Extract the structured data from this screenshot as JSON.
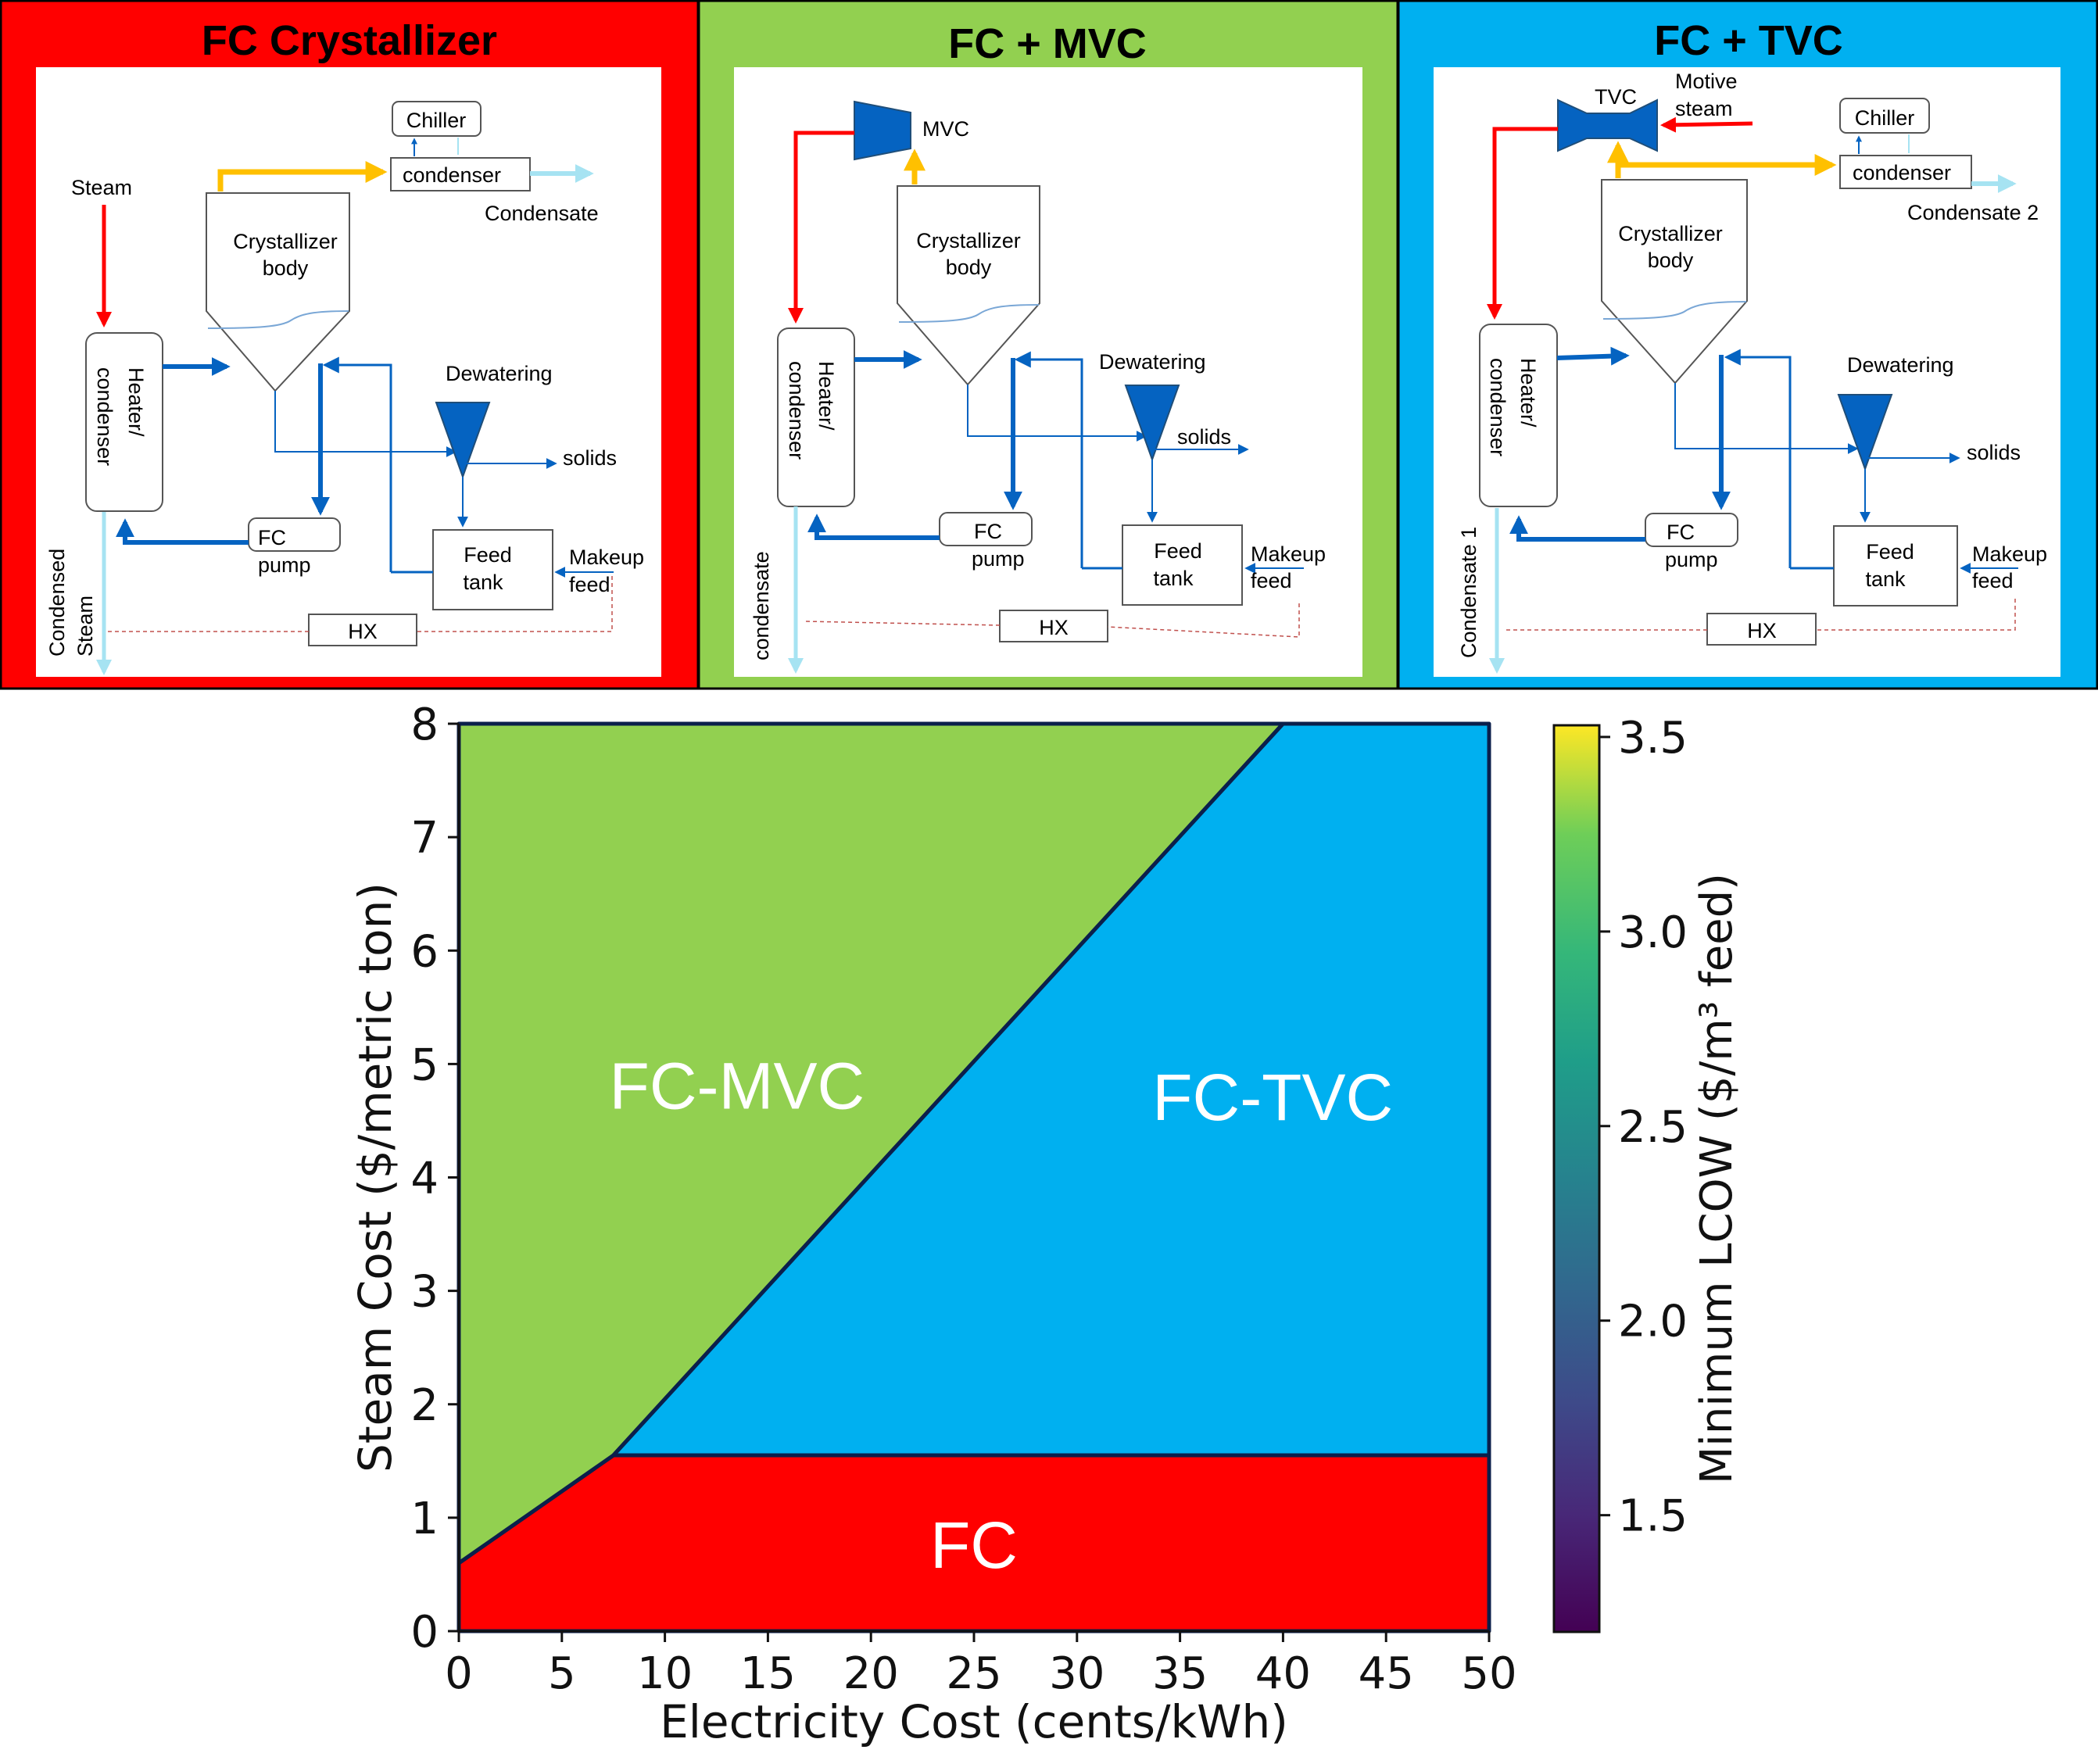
{
  "panels": [
    {
      "title": "FC Crystallizer",
      "bg": "#ff0000",
      "labels": {
        "steam": "Steam",
        "chiller": "Chiller",
        "condenser": "condenser",
        "condensate": "Condensate",
        "body_l1": "Crystallizer",
        "body_l2": "body",
        "hc_l1": "Heater/",
        "hc_l2": "condenser",
        "dewatering": "Dewatering",
        "solids": "solids",
        "pump_l1": "FC",
        "pump_l2": "pump",
        "tank_l1": "Feed",
        "tank_l2": "tank",
        "makeup_l1": "Makeup",
        "makeup_l2": "feed",
        "hx": "HX",
        "out_l1": "Condensed",
        "out_l2": "Steam"
      }
    },
    {
      "title": "FC + MVC",
      "bg": "#92d050",
      "labels": {
        "mvc": "MVC",
        "body_l1": "Crystallizer",
        "body_l2": "body",
        "hc_l1": "Heater/",
        "hc_l2": "condenser",
        "dewatering": "Dewatering",
        "solids": "solids",
        "pump_l1": "FC",
        "pump_l2": "pump",
        "tank_l1": "Feed",
        "tank_l2": "tank",
        "makeup_l1": "Makeup",
        "makeup_l2": "feed",
        "hx": "HX",
        "out_l1": "condensate"
      }
    },
    {
      "title": "FC + TVC",
      "bg": "#00b0f0",
      "labels": {
        "tvc": "TVC",
        "motive_l1": "Motive",
        "motive_l2": "steam",
        "chiller": "Chiller",
        "condenser": "condenser",
        "condensate": "Condensate 2",
        "body_l1": "Crystallizer",
        "body_l2": "body",
        "hc_l1": "Heater/",
        "hc_l2": "condenser",
        "dewatering": "Dewatering",
        "solids": "solids",
        "pump_l1": "FC",
        "pump_l2": "pump",
        "tank_l1": "Feed",
        "tank_l2": "tank",
        "makeup_l1": "Makeup",
        "makeup_l2": "feed",
        "hx": "HX",
        "out_l1": "Condensate 1"
      }
    }
  ],
  "colors": {
    "steam_red": "#ff0000",
    "vapor_yellow": "#ffc000",
    "process_blue": "#0563c1",
    "condensate_lightblue": "#a6e3f2",
    "fc_region": "#ff0000",
    "mvc_region": "#92d050",
    "tvc_region": "#00b0f0",
    "boundary": "#0b1f4b"
  },
  "chart_data": {
    "type": "area",
    "xlabel": "Electricity Cost (cents/kWh)",
    "ylabel": "Steam Cost ($/metric ton)",
    "xlim": [
      0,
      50
    ],
    "ylim": [
      0,
      8
    ],
    "xticks": [
      0,
      5,
      10,
      15,
      20,
      25,
      30,
      35,
      40,
      45,
      50
    ],
    "yticks": [
      0,
      1,
      2,
      3,
      4,
      5,
      6,
      7,
      8
    ],
    "regions": [
      {
        "name": "FC",
        "color": "#ff0000",
        "label_at": [
          25,
          0.75
        ],
        "polygon": [
          [
            0,
            0
          ],
          [
            50,
            0
          ],
          [
            50,
            1.55
          ],
          [
            7.5,
            1.55
          ],
          [
            0,
            0.6
          ]
        ]
      },
      {
        "name": "FC-MVC",
        "color": "#92d050",
        "label_at": [
          13.5,
          4.8
        ],
        "polygon": [
          [
            0,
            0.6
          ],
          [
            7.5,
            1.55
          ],
          [
            40,
            8.0
          ],
          [
            0,
            8.0
          ]
        ]
      },
      {
        "name": "FC-TVC",
        "color": "#00b0f0",
        "label_at": [
          39.5,
          4.7
        ],
        "polygon": [
          [
            7.5,
            1.55
          ],
          [
            40,
            8.0
          ],
          [
            50,
            8.0
          ],
          [
            50,
            1.55
          ]
        ]
      }
    ],
    "colorbar": {
      "label": "Minimum LCOW ($/m³ feed)",
      "colormap": "viridis",
      "range": [
        1.2,
        3.53
      ],
      "ticks": [
        1.5,
        2.0,
        2.5,
        3.0,
        3.5
      ],
      "tick_labels": [
        "1.5",
        "2.0",
        "2.5",
        "3.0",
        "3.5"
      ]
    }
  }
}
